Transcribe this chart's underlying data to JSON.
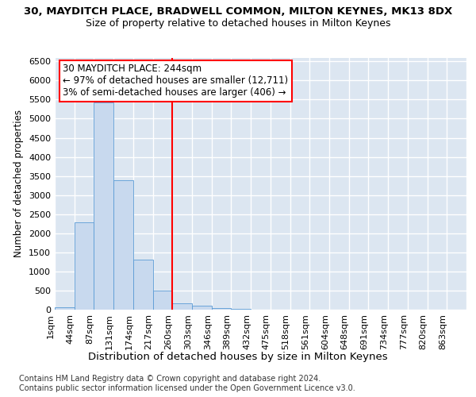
{
  "title": "30, MAYDITCH PLACE, BRADWELL COMMON, MILTON KEYNES, MK13 8DX",
  "subtitle": "Size of property relative to detached houses in Milton Keynes",
  "xlabel": "Distribution of detached houses by size in Milton Keynes",
  "ylabel": "Number of detached properties",
  "footer_line1": "Contains HM Land Registry data © Crown copyright and database right 2024.",
  "footer_line2": "Contains public sector information licensed under the Open Government Licence v3.0.",
  "bin_labels": [
    "1sqm",
    "44sqm",
    "87sqm",
    "131sqm",
    "174sqm",
    "217sqm",
    "260sqm",
    "303sqm",
    "346sqm",
    "389sqm",
    "432sqm",
    "475sqm",
    "518sqm",
    "561sqm",
    "604sqm",
    "648sqm",
    "691sqm",
    "734sqm",
    "777sqm",
    "820sqm",
    "863sqm"
  ],
  "bar_values": [
    55,
    2280,
    5420,
    3380,
    1310,
    490,
    170,
    95,
    50,
    20,
    8,
    3,
    1,
    0,
    0,
    0,
    0,
    0,
    0,
    0,
    0
  ],
  "bar_color": "#c8d9ee",
  "bar_edge_color": "#5b9bd5",
  "vline_x": 6.0,
  "vline_color": "red",
  "annotation_text": "30 MAYDITCH PLACE: 244sqm\n← 97% of detached houses are smaller (12,711)\n3% of semi-detached houses are larger (406) →",
  "annotation_box_color": "white",
  "annotation_box_edge": "red",
  "ylim": [
    0,
    6600
  ],
  "yticks": [
    0,
    500,
    1000,
    1500,
    2000,
    2500,
    3000,
    3500,
    4000,
    4500,
    5000,
    5500,
    6000,
    6500
  ],
  "bg_color": "#dce6f1",
  "fig_bg_color": "white",
  "grid_color": "white",
  "title_fontsize": 9.5,
  "subtitle_fontsize": 9,
  "ylabel_fontsize": 8.5,
  "xlabel_fontsize": 9.5,
  "tick_fontsize": 8,
  "annot_fontsize": 8.5,
  "footer_fontsize": 7
}
